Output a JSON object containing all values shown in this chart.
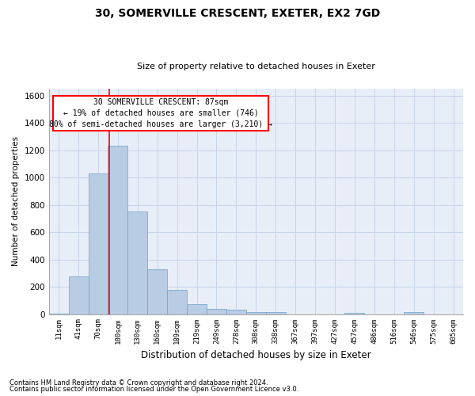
{
  "title1": "30, SOMERVILLE CRESCENT, EXETER, EX2 7GD",
  "title2": "Size of property relative to detached houses in Exeter",
  "xlabel": "Distribution of detached houses by size in Exeter",
  "ylabel": "Number of detached properties",
  "bar_color": "#b8cce4",
  "bar_edge_color": "#6fa0c8",
  "categories": [
    "11sqm",
    "41sqm",
    "70sqm",
    "100sqm",
    "130sqm",
    "160sqm",
    "189sqm",
    "219sqm",
    "249sqm",
    "278sqm",
    "308sqm",
    "338sqm",
    "367sqm",
    "397sqm",
    "427sqm",
    "457sqm",
    "486sqm",
    "516sqm",
    "546sqm",
    "575sqm",
    "605sqm"
  ],
  "values": [
    5,
    275,
    1030,
    1235,
    750,
    330,
    180,
    75,
    40,
    30,
    15,
    15,
    0,
    0,
    0,
    10,
    0,
    0,
    15,
    0,
    0
  ],
  "ylim": [
    0,
    1650
  ],
  "yticks": [
    0,
    200,
    400,
    600,
    800,
    1000,
    1200,
    1400,
    1600
  ],
  "property_line_x": 2.57,
  "annotation_text1": "30 SOMERVILLE CRESCENT: 87sqm",
  "annotation_text2": "← 19% of detached houses are smaller (746)",
  "annotation_text3": "80% of semi-detached houses are larger (3,210) →",
  "footnote1": "Contains HM Land Registry data © Crown copyright and database right 2024.",
  "footnote2": "Contains public sector information licensed under the Open Government Licence v3.0.",
  "grid_color": "#c8d4e8",
  "background_color": "#e8eef8"
}
